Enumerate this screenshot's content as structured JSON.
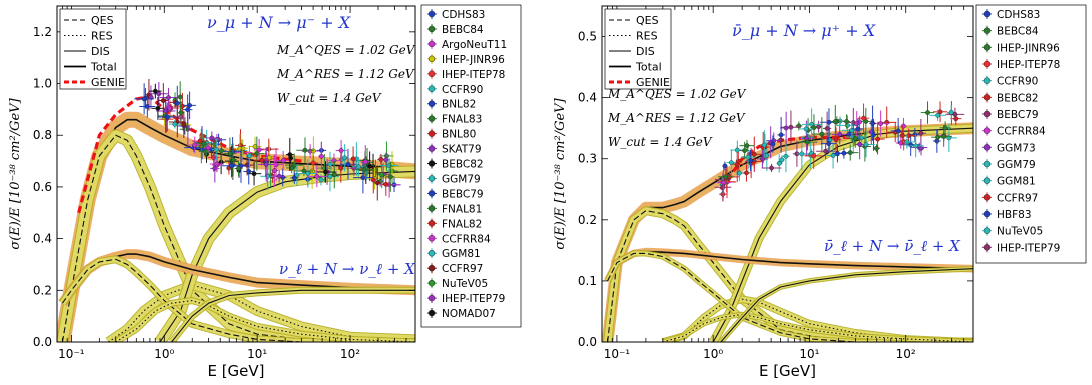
{
  "chart_data": [
    {
      "type": "line",
      "xscale": "log",
      "xlim": [
        0.07,
        500
      ],
      "ylim": [
        0.0,
        1.3
      ],
      "xlabel": "E [GeV]",
      "ylabel": "σ(E)/E  [10⁻³⁸ cm²/GeV]",
      "xticks": [
        0.1,
        1,
        10,
        100
      ],
      "xtick_labels": [
        "10⁻¹",
        "10⁰",
        "10¹",
        "10²"
      ],
      "yticks": [
        0.0,
        0.2,
        0.4,
        0.6,
        0.8,
        1.0,
        1.2
      ],
      "ytick_labels": [
        "0.0",
        "0.2",
        "0.4",
        "0.6",
        "0.8",
        "1.0",
        "1.2"
      ],
      "cc_process": "ν_μ + N → μ⁻ + X",
      "nc_process": "ν_ℓ + N → ν_ℓ + X",
      "params": [
        "M_A^QES = 1.02 GeV",
        "M_A^RES = 1.12 GeV",
        "W_cut = 1.4 GeV"
      ],
      "line_legend": [
        {
          "label": "QES",
          "style": "dashed"
        },
        {
          "label": "RES",
          "style": "dotted"
        },
        {
          "label": "DIS",
          "style": "solid-thin"
        },
        {
          "label": "Total",
          "style": "solid"
        },
        {
          "label": "GENIE",
          "style": "red-dashed"
        }
      ],
      "data_legend": [
        {
          "label": "CDHS83",
          "color": "#1f3fbf",
          "marker": "o"
        },
        {
          "label": "BEBC84",
          "color": "#2b7a2b",
          "marker": "+"
        },
        {
          "label": "ArgoNeuT11",
          "color": "#cc33cc",
          "marker": "p"
        },
        {
          "label": "IHEP-JINR96",
          "color": "#c9c400",
          "marker": "s"
        },
        {
          "label": "IHEP-ITEP78",
          "color": "#e83030",
          "marker": "x"
        },
        {
          "label": "CCFR90",
          "color": "#2ab7b7",
          "marker": "o"
        },
        {
          "label": "BNL82",
          "color": "#1f3fbf",
          "marker": "+"
        },
        {
          "label": "FNAL83",
          "color": "#2b7a2b",
          "marker": "<"
        },
        {
          "label": "BNL80",
          "color": "#d02020",
          "marker": "v"
        },
        {
          "label": "SKAT79",
          "color": "#8e2fbf",
          "marker": "+"
        },
        {
          "label": "BEBC82",
          "color": "#111111",
          "marker": "+"
        },
        {
          "label": "GGM79",
          "color": "#2ab7b7",
          "marker": "+"
        },
        {
          "label": "BEBC79",
          "color": "#1f3fbf",
          "marker": "o"
        },
        {
          "label": "FNAL81",
          "color": "#2b7a2b",
          "marker": "o"
        },
        {
          "label": "FNAL82",
          "color": "#d02020",
          "marker": "s"
        },
        {
          "label": "CCFRR84",
          "color": "#cc33cc",
          "marker": "<"
        },
        {
          "label": "GGM81",
          "color": "#2ab7b7",
          "marker": "o*"
        },
        {
          "label": "CCFR97",
          "color": "#8b1a1a",
          "marker": "+"
        },
        {
          "label": "NuTeV05",
          "color": "#2b9a2b",
          "marker": "^"
        },
        {
          "label": "IHEP-ITEP79",
          "color": "#9b2fbf",
          "marker": "+"
        },
        {
          "label": "NOMAD07",
          "color": "#111111",
          "marker": "+"
        }
      ],
      "series": [
        {
          "role": "Total_CC",
          "x": [
            0.08,
            0.1,
            0.15,
            0.2,
            0.3,
            0.4,
            0.5,
            0.7,
            1,
            2,
            5,
            10,
            30,
            100,
            500
          ],
          "y": [
            0.0,
            0.2,
            0.55,
            0.72,
            0.83,
            0.86,
            0.86,
            0.83,
            0.8,
            0.75,
            0.72,
            0.7,
            0.69,
            0.68,
            0.66
          ]
        },
        {
          "role": "QES_CC",
          "x": [
            0.08,
            0.1,
            0.15,
            0.2,
            0.3,
            0.4,
            0.5,
            0.7,
            1,
            2,
            5,
            10,
            30,
            100,
            500
          ],
          "y": [
            0.0,
            0.2,
            0.55,
            0.72,
            0.8,
            0.78,
            0.72,
            0.6,
            0.45,
            0.2,
            0.07,
            0.03,
            0.01,
            0.0,
            0.0
          ]
        },
        {
          "role": "RES_CC",
          "x": [
            0.25,
            0.4,
            0.6,
            1,
            2,
            5,
            10,
            30,
            100,
            500
          ],
          "y": [
            0.0,
            0.05,
            0.12,
            0.18,
            0.22,
            0.18,
            0.12,
            0.06,
            0.02,
            0.01
          ]
        },
        {
          "role": "DIS_CC",
          "x": [
            0.9,
            1.5,
            2,
            3,
            5,
            10,
            20,
            50,
            100,
            500
          ],
          "y": [
            0.0,
            0.12,
            0.26,
            0.4,
            0.5,
            0.58,
            0.62,
            0.64,
            0.65,
            0.66
          ]
        },
        {
          "role": "Total_NC",
          "x": [
            0.08,
            0.1,
            0.15,
            0.2,
            0.3,
            0.4,
            0.5,
            0.7,
            1,
            2,
            5,
            10,
            30,
            100,
            500
          ],
          "y": [
            0.15,
            0.2,
            0.28,
            0.31,
            0.33,
            0.34,
            0.34,
            0.33,
            0.31,
            0.28,
            0.25,
            0.23,
            0.22,
            0.21,
            0.2
          ]
        },
        {
          "role": "QES_NC",
          "x": [
            0.08,
            0.1,
            0.15,
            0.2,
            0.3,
            0.4,
            0.5,
            0.7,
            1,
            2,
            5,
            10,
            30,
            100,
            500
          ],
          "y": [
            0.15,
            0.2,
            0.28,
            0.31,
            0.32,
            0.3,
            0.27,
            0.22,
            0.16,
            0.07,
            0.03,
            0.01,
            0.0,
            0.0,
            0.0
          ]
        },
        {
          "role": "RES_NC",
          "x": [
            0.3,
            0.5,
            0.8,
            1.2,
            2,
            3,
            5,
            10,
            30,
            100,
            500
          ],
          "y": [
            0.0,
            0.05,
            0.12,
            0.15,
            0.16,
            0.14,
            0.1,
            0.06,
            0.03,
            0.01,
            0.0
          ]
        },
        {
          "role": "DIS_NC",
          "x": [
            1.2,
            2,
            3,
            5,
            10,
            30,
            100,
            500
          ],
          "y": [
            0.0,
            0.1,
            0.15,
            0.18,
            0.19,
            0.2,
            0.2,
            0.2
          ]
        },
        {
          "role": "GENIE",
          "x": [
            0.12,
            0.2,
            0.3,
            0.5,
            0.7,
            1,
            2,
            5,
            10,
            30
          ],
          "y": [
            0.5,
            0.8,
            0.88,
            0.94,
            0.95,
            0.9,
            0.82,
            0.75,
            0.72,
            0.7
          ]
        }
      ]
    },
    {
      "type": "line",
      "xscale": "log",
      "xlim": [
        0.07,
        500
      ],
      "ylim": [
        0.0,
        0.55
      ],
      "xlabel": "E [GeV]",
      "ylabel": "σ(E)/E  [10⁻³⁸ cm²/GeV]",
      "xticks": [
        0.1,
        1,
        10,
        100
      ],
      "xtick_labels": [
        "10⁻¹",
        "10⁰",
        "10¹",
        "10²"
      ],
      "yticks": [
        0.0,
        0.1,
        0.2,
        0.3,
        0.4,
        0.5
      ],
      "ytick_labels": [
        "0.0",
        "0.1",
        "0.2",
        "0.3",
        "0.4",
        "0.5"
      ],
      "cc_process": "ν̄_μ + N → μ⁺ + X",
      "nc_process": "ν̄_ℓ + N → ν̄_ℓ + X",
      "params": [
        "M_A^QES = 1.02 GeV",
        "M_A^RES = 1.12 GeV",
        "W_cut = 1.4 GeV"
      ],
      "line_legend": [
        {
          "label": "QES",
          "style": "dashed"
        },
        {
          "label": "RES",
          "style": "dotted"
        },
        {
          "label": "DIS",
          "style": "solid-thin"
        },
        {
          "label": "Total",
          "style": "solid"
        },
        {
          "label": "GENIE",
          "style": "red-dashed"
        }
      ],
      "data_legend": [
        {
          "label": "CDHS83",
          "color": "#1f3fbf",
          "marker": "o"
        },
        {
          "label": "BEBC84",
          "color": "#2b7a2b",
          "marker": "+"
        },
        {
          "label": "IHEP-JINR96",
          "color": "#2b7a2b",
          "marker": "<"
        },
        {
          "label": "IHEP-ITEP78",
          "color": "#e83030",
          "marker": "x"
        },
        {
          "label": "CCFR90",
          "color": "#2ab7b7",
          "marker": "o"
        },
        {
          "label": "BEBC82",
          "color": "#d02020",
          "marker": "v"
        },
        {
          "label": "BEBC79",
          "color": "#8e2f6f",
          "marker": "o"
        },
        {
          "label": "CCFRR84",
          "color": "#cc33cc",
          "marker": "s"
        },
        {
          "label": "GGM73",
          "color": "#8e2fbf",
          "marker": "<"
        },
        {
          "label": "GGM79",
          "color": "#2ab7b7",
          "marker": "+"
        },
        {
          "label": "GGM81",
          "color": "#2ab7b7",
          "marker": "o*"
        },
        {
          "label": "CCFR97",
          "color": "#d02020",
          "marker": "+"
        },
        {
          "label": "HBF83",
          "color": "#1f3fbf",
          "marker": "s"
        },
        {
          "label": "NuTeV05",
          "color": "#2ab7b7",
          "marker": "^"
        },
        {
          "label": "IHEP-ITEP79",
          "color": "#8e2f6f",
          "marker": "o"
        }
      ],
      "series": [
        {
          "role": "Total_CC",
          "x": [
            0.08,
            0.1,
            0.15,
            0.2,
            0.3,
            0.4,
            0.5,
            0.7,
            1,
            2,
            5,
            10,
            30,
            100,
            500
          ],
          "y": [
            0.0,
            0.13,
            0.2,
            0.22,
            0.22,
            0.225,
            0.23,
            0.245,
            0.26,
            0.29,
            0.32,
            0.33,
            0.34,
            0.345,
            0.35
          ]
        },
        {
          "role": "QES_CC",
          "x": [
            0.08,
            0.1,
            0.15,
            0.2,
            0.3,
            0.4,
            0.5,
            0.7,
            1,
            2,
            5,
            10,
            30,
            100,
            500
          ],
          "y": [
            0.0,
            0.13,
            0.2,
            0.215,
            0.21,
            0.2,
            0.19,
            0.16,
            0.13,
            0.07,
            0.02,
            0.01,
            0.0,
            0.0,
            0.0
          ]
        },
        {
          "role": "RES_CC",
          "x": [
            0.3,
            0.5,
            0.8,
            1.2,
            2,
            3,
            5,
            10,
            30,
            100,
            500
          ],
          "y": [
            0.0,
            0.01,
            0.04,
            0.06,
            0.07,
            0.065,
            0.05,
            0.03,
            0.015,
            0.005,
            0.0
          ]
        },
        {
          "role": "DIS_CC",
          "x": [
            1.0,
            1.5,
            2,
            3,
            5,
            10,
            20,
            50,
            100,
            500
          ],
          "y": [
            0.0,
            0.05,
            0.1,
            0.17,
            0.23,
            0.29,
            0.32,
            0.34,
            0.345,
            0.35
          ]
        },
        {
          "role": "Total_NC",
          "x": [
            0.08,
            0.1,
            0.15,
            0.2,
            0.3,
            0.5,
            1,
            2,
            5,
            10,
            30,
            100,
            500
          ],
          "y": [
            0.1,
            0.13,
            0.145,
            0.148,
            0.147,
            0.145,
            0.14,
            0.135,
            0.13,
            0.128,
            0.125,
            0.123,
            0.12
          ]
        },
        {
          "role": "QES_NC",
          "x": [
            0.08,
            0.1,
            0.15,
            0.2,
            0.3,
            0.5,
            0.7,
            1,
            2,
            5,
            10,
            30,
            100,
            500
          ],
          "y": [
            0.1,
            0.13,
            0.145,
            0.145,
            0.14,
            0.12,
            0.1,
            0.08,
            0.04,
            0.015,
            0.005,
            0.0,
            0.0,
            0.0
          ]
        },
        {
          "role": "RES_NC",
          "x": [
            0.3,
            0.5,
            0.8,
            1.2,
            2,
            3,
            5,
            10,
            30,
            100,
            500
          ],
          "y": [
            0.0,
            0.01,
            0.03,
            0.04,
            0.045,
            0.04,
            0.03,
            0.02,
            0.01,
            0.005,
            0.0
          ]
        },
        {
          "role": "DIS_NC",
          "x": [
            1.2,
            2,
            3,
            5,
            10,
            30,
            100,
            500
          ],
          "y": [
            0.0,
            0.04,
            0.07,
            0.09,
            0.1,
            0.11,
            0.115,
            0.12
          ]
        },
        {
          "role": "GENIE",
          "x": [
            1.2,
            2,
            3,
            5,
            10,
            30
          ],
          "y": [
            0.25,
            0.3,
            0.32,
            0.33,
            0.335,
            0.335
          ]
        }
      ]
    }
  ],
  "colors": {
    "band_fill": "#e6e070",
    "band_edge": "#b5ad20",
    "curve": "#111111",
    "genie": "#ee1111",
    "process_text": "#2233cc",
    "total_band": "#e89a4a"
  }
}
